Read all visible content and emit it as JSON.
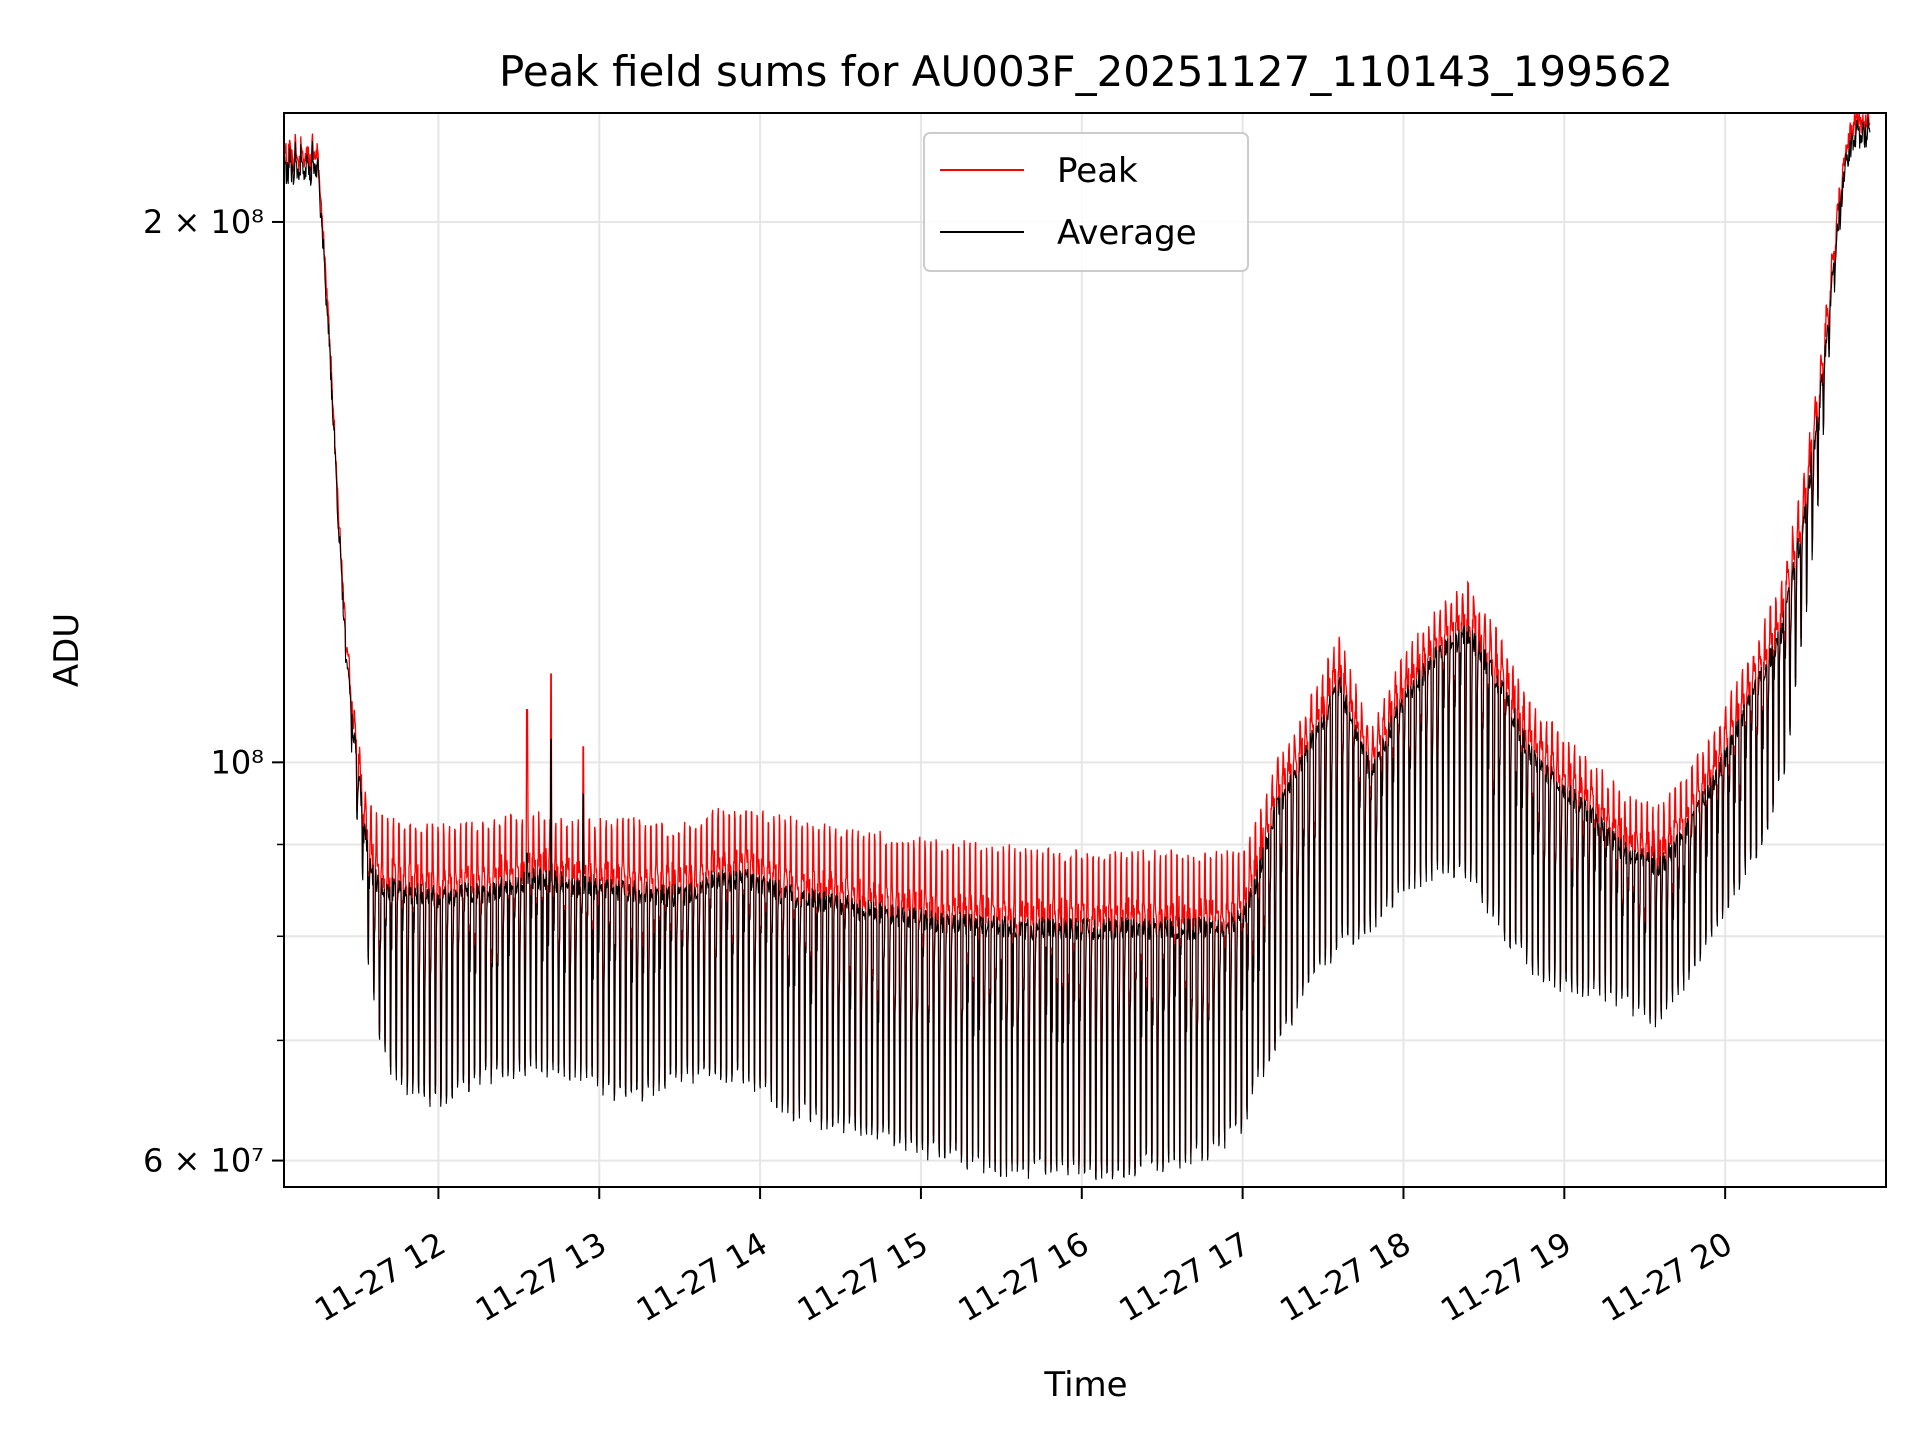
{
  "chart_data": {
    "type": "line",
    "title": "Peak field sums for AU003F_20251127_110143_199562",
    "xlabel": "Time",
    "ylabel": "ADU",
    "yscale": "log",
    "ylim": [
      58000000,
      230000000
    ],
    "xlim": [
      11.04,
      21.0
    ],
    "grid": true,
    "legend_position": "top-center",
    "x_ticks": [
      12,
      13,
      14,
      15,
      16,
      17,
      18,
      19,
      20
    ],
    "x_tick_labels": [
      "11-27 12",
      "11-27 13",
      "11-27 14",
      "11-27 15",
      "11-27 16",
      "11-27 17",
      "11-27 18",
      "11-27 19",
      "11-27 20"
    ],
    "y_major_ticks": [
      60000000,
      100000000,
      200000000
    ],
    "y_major_tick_labels": [
      "6 × 10⁷",
      "10⁸",
      "2 × 10⁸"
    ],
    "y_minor_ticks": [
      70000000,
      80000000,
      90000000
    ],
    "series": [
      {
        "name": "Peak",
        "color": "#ff0000"
      },
      {
        "name": "Average",
        "color": "#000000"
      }
    ],
    "envelope_hours": [
      11.04,
      11.25,
      11.28,
      11.33,
      11.38,
      11.43,
      11.48,
      11.53,
      11.58,
      11.65,
      11.8,
      12.0,
      12.3,
      12.6,
      12.9,
      13.2,
      13.5,
      13.7,
      13.9,
      14.2,
      14.5,
      14.8,
      15.0,
      15.3,
      15.6,
      15.9,
      16.2,
      16.5,
      16.8,
      17.0,
      17.1,
      17.2,
      17.4,
      17.6,
      17.8,
      18.0,
      18.2,
      18.4,
      18.6,
      18.8,
      19.0,
      19.2,
      19.4,
      19.6,
      19.8,
      20.0,
      20.2,
      20.35,
      20.5,
      20.6,
      20.7,
      20.75,
      20.8,
      21.0
    ],
    "envelope_upper": [
      218000000,
      218000000,
      200000000,
      170000000,
      140000000,
      118000000,
      107000000,
      99000000,
      95000000,
      93500000,
      93000000,
      92500000,
      93000000,
      94000000,
      93000000,
      93500000,
      92500000,
      94500000,
      95000000,
      93500000,
      92000000,
      91500000,
      91000000,
      90500000,
      90000000,
      89500000,
      89500000,
      89500000,
      89500000,
      90000000,
      94000000,
      100000000,
      108000000,
      118000000,
      105000000,
      115000000,
      122000000,
      126000000,
      118000000,
      108000000,
      104000000,
      100000000,
      96000000,
      95000000,
      100000000,
      108000000,
      118000000,
      126000000,
      148000000,
      170000000,
      208000000,
      222000000,
      230000000,
      230000000
    ],
    "envelope_avg_high": [
      216000000,
      216000000,
      198000000,
      168000000,
      137000000,
      115000000,
      104000000,
      95000000,
      88000000,
      86500000,
      86000000,
      85500000,
      86000000,
      87500000,
      86500000,
      86000000,
      85500000,
      87000000,
      87500000,
      85500000,
      84500000,
      83500000,
      83000000,
      82500000,
      82000000,
      82000000,
      82000000,
      82000000,
      82000000,
      83000000,
      88000000,
      95000000,
      103000000,
      112000000,
      100000000,
      110000000,
      116000000,
      120000000,
      112000000,
      102000000,
      98000000,
      94000000,
      90000000,
      89000000,
      94000000,
      102000000,
      112000000,
      120000000,
      140000000,
      165000000,
      202000000,
      218000000,
      226000000,
      228000000
    ],
    "envelope_lower": [
      216000000,
      216000000,
      195000000,
      165000000,
      134000000,
      110000000,
      96000000,
      84000000,
      74000000,
      68000000,
      65000000,
      64000000,
      66000000,
      67000000,
      66000000,
      64000000,
      66000000,
      66000000,
      66000000,
      63000000,
      62000000,
      61000000,
      60000000,
      59000000,
      58500000,
      58500000,
      58500000,
      59000000,
      60000000,
      62000000,
      66000000,
      68000000,
      74000000,
      78000000,
      80000000,
      84000000,
      86000000,
      86000000,
      80000000,
      76000000,
      74000000,
      74000000,
      72000000,
      71000000,
      76000000,
      82000000,
      88000000,
      96000000,
      118000000,
      145000000,
      190000000,
      212000000,
      222000000,
      226000000
    ],
    "annotations": [
      {
        "hour": 12.55,
        "peak": 107000000,
        "average": 89000000
      },
      {
        "hour": 12.7,
        "peak": 112000000,
        "average": 103000000
      },
      {
        "hour": 12.9,
        "peak": 102000000,
        "average": 96000000
      }
    ]
  }
}
